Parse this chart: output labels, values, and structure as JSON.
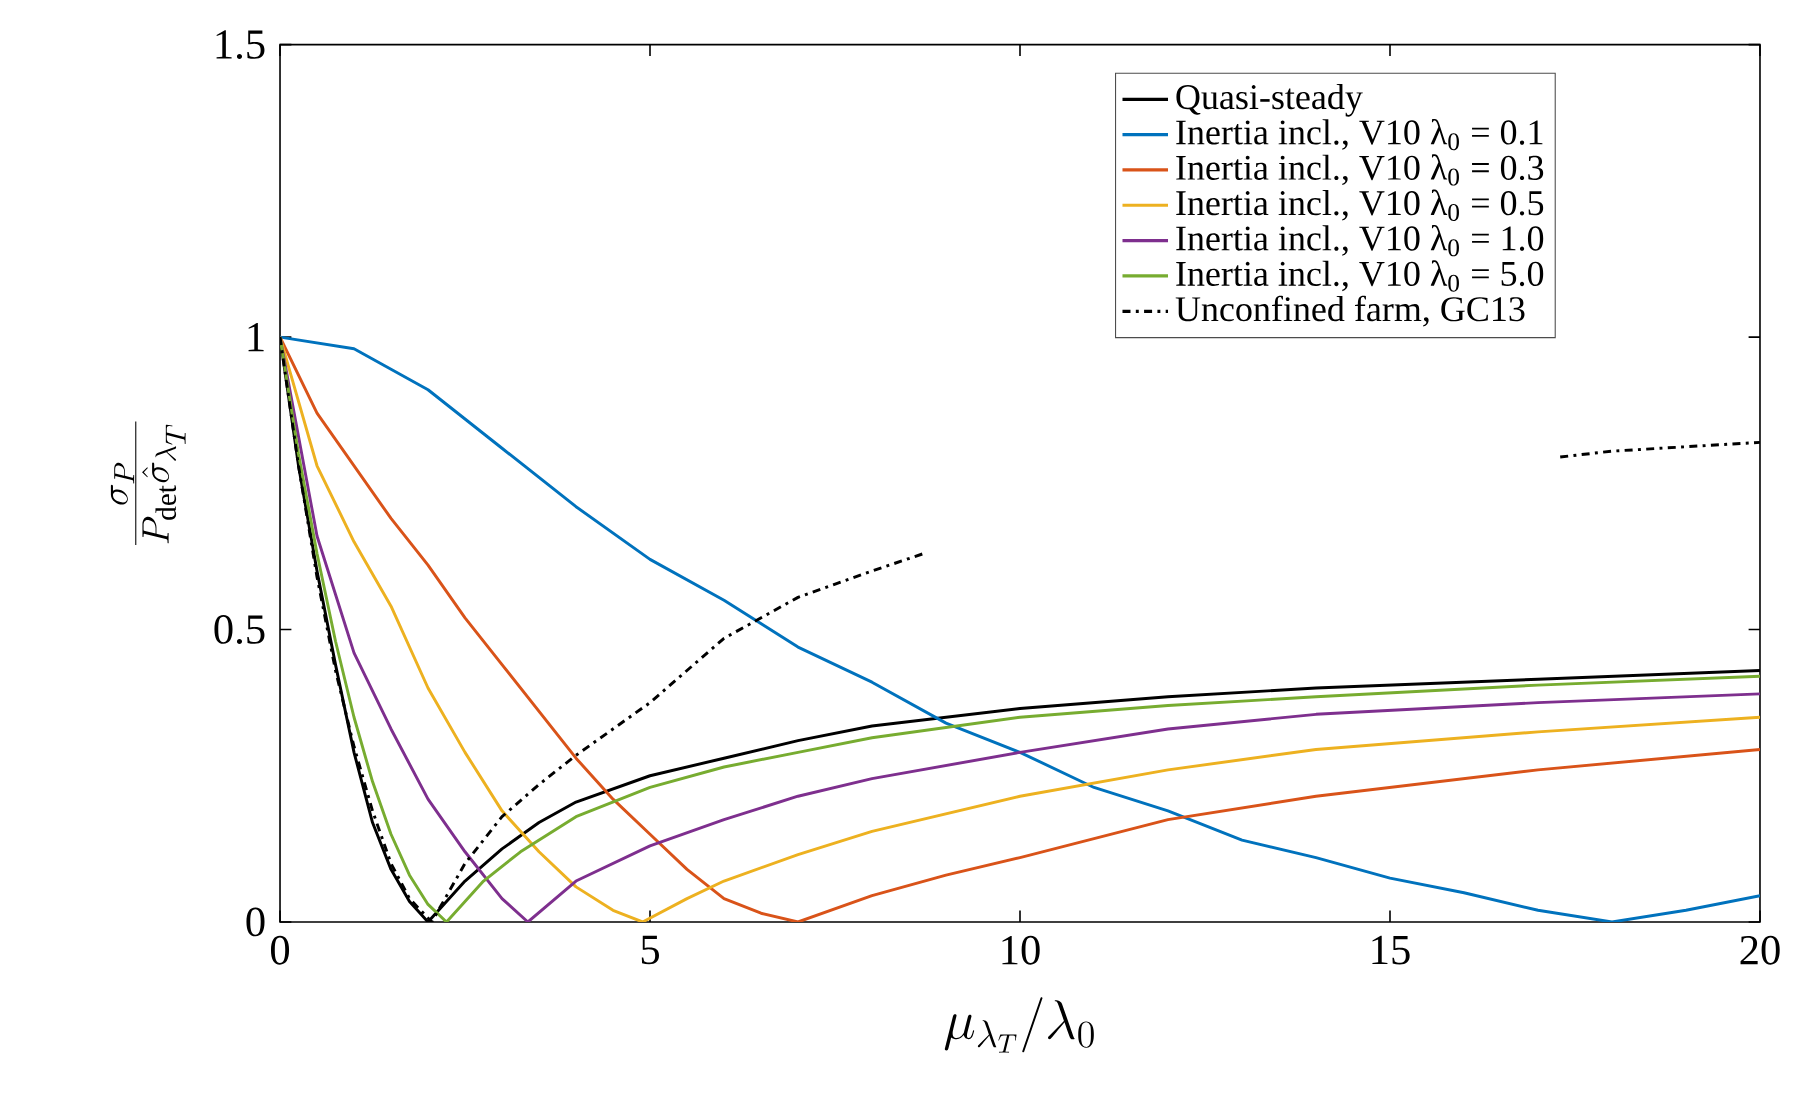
{
  "chart_data": {
    "type": "line",
    "xlabel": "\\mu_{\\lambda_T}/\\lambda_0",
    "ylabel": "\\frac{\\sigma_P}{P_\\mathrm{det}\\hat{\\sigma}_{\\lambda_T}}",
    "xlim": [
      0,
      20
    ],
    "ylim": [
      0,
      1.5
    ],
    "xticks": [
      0,
      5,
      10,
      15,
      20
    ],
    "yticks": [
      0,
      0.5,
      1,
      1.5
    ],
    "grid": false,
    "legend": "top right",
    "marker": "none",
    "series": [
      {
        "name": "Quasi-steady",
        "color": "#000000",
        "line_style": "solid",
        "x": [
          0,
          0.25,
          0.5,
          0.75,
          1,
          1.25,
          1.5,
          1.75,
          2,
          2.5,
          3,
          3.5,
          4,
          5,
          6,
          7,
          8,
          10,
          12,
          14,
          17,
          20
        ],
        "values": [
          1,
          0.78,
          0.6,
          0.44,
          0.29,
          0.17,
          0.09,
          0.035,
          0,
          0.07,
          0.125,
          0.17,
          0.205,
          0.25,
          0.28,
          0.31,
          0.335,
          0.365,
          0.385,
          0.4,
          0.415,
          0.43
        ]
      },
      {
        "name": "Inertia incl., V10 λ$_{0}$ = 0.1",
        "color": "#0072bd",
        "line_style": "solid",
        "x": [
          0,
          1,
          2,
          3,
          4,
          5,
          6,
          7,
          8,
          9,
          10,
          11,
          12,
          13,
          14,
          15,
          16,
          17,
          18,
          19,
          20
        ],
        "values": [
          1,
          0.98,
          0.91,
          0.81,
          0.71,
          0.62,
          0.55,
          0.47,
          0.41,
          0.34,
          0.29,
          0.23,
          0.19,
          0.14,
          0.11,
          0.075,
          0.05,
          0.02,
          0,
          0.02,
          0.045
        ]
      },
      {
        "name": "Inertia incl., V10 λ$_{0}$ = 0.3",
        "color": "#d95319",
        "line_style": "solid",
        "x": [
          0,
          0.5,
          1,
          1.5,
          2,
          2.5,
          3,
          3.5,
          4,
          4.5,
          5,
          5.5,
          6,
          6.5,
          7,
          8,
          9,
          10,
          12,
          14,
          17,
          20
        ],
        "values": [
          1,
          0.87,
          0.78,
          0.69,
          0.61,
          0.52,
          0.44,
          0.36,
          0.28,
          0.21,
          0.15,
          0.09,
          0.04,
          0.015,
          0,
          0.045,
          0.08,
          0.11,
          0.175,
          0.215,
          0.26,
          0.295
        ]
      },
      {
        "name": "Inertia incl., V10 λ$_{0}$ = 0.5",
        "color": "#edb120",
        "line_style": "solid",
        "x": [
          0,
          0.5,
          1,
          1.5,
          2,
          2.5,
          3,
          3.5,
          4,
          4.5,
          4.9,
          5.5,
          6,
          7,
          8,
          10,
          12,
          14,
          17,
          20
        ],
        "values": [
          1,
          0.78,
          0.65,
          0.54,
          0.4,
          0.29,
          0.19,
          0.12,
          0.06,
          0.02,
          0,
          0.04,
          0.07,
          0.115,
          0.155,
          0.215,
          0.26,
          0.295,
          0.325,
          0.35
        ]
      },
      {
        "name": "Inertia incl., V10 λ$_{0}$ = 1.0",
        "color": "#7e2f8e",
        "line_style": "solid",
        "x": [
          0,
          0.5,
          1,
          1.5,
          2,
          2.5,
          3,
          3.35,
          4,
          5,
          6,
          7,
          8,
          10,
          12,
          14,
          17,
          20
        ],
        "values": [
          1,
          0.66,
          0.46,
          0.33,
          0.21,
          0.12,
          0.04,
          0,
          0.07,
          0.13,
          0.175,
          0.215,
          0.245,
          0.29,
          0.33,
          0.355,
          0.375,
          0.39
        ]
      },
      {
        "name": "Inertia incl., V10 λ$_{0}$ = 5.0",
        "color": "#77ac30",
        "line_style": "solid",
        "x": [
          0,
          0.25,
          0.5,
          0.75,
          1,
          1.25,
          1.5,
          1.75,
          2,
          2.25,
          2.75,
          3.25,
          4,
          5,
          6,
          7,
          8,
          10,
          12,
          14,
          17,
          20
        ],
        "values": [
          1,
          0.8,
          0.63,
          0.48,
          0.35,
          0.24,
          0.15,
          0.08,
          0.03,
          0,
          0.07,
          0.12,
          0.18,
          0.23,
          0.265,
          0.29,
          0.315,
          0.35,
          0.37,
          0.385,
          0.405,
          0.42
        ]
      },
      {
        "name": "Unconfined farm, GC13",
        "color": "#000000",
        "line_style": "dashdot",
        "x": [
          0,
          0.25,
          0.5,
          0.75,
          1,
          1.25,
          1.5,
          1.75,
          2.05,
          2.5,
          3,
          3.5,
          4,
          5,
          6,
          7,
          8,
          8.7,
          12,
          17.3,
          18,
          20
        ],
        "values": [
          1,
          0.78,
          0.59,
          0.43,
          0.3,
          0.19,
          0.1,
          0.04,
          0,
          0.1,
          0.18,
          0.235,
          0.285,
          0.375,
          0.485,
          0.555,
          0.6,
          0.63,
          null,
          0.795,
          0.805,
          0.82
        ]
      }
    ]
  }
}
